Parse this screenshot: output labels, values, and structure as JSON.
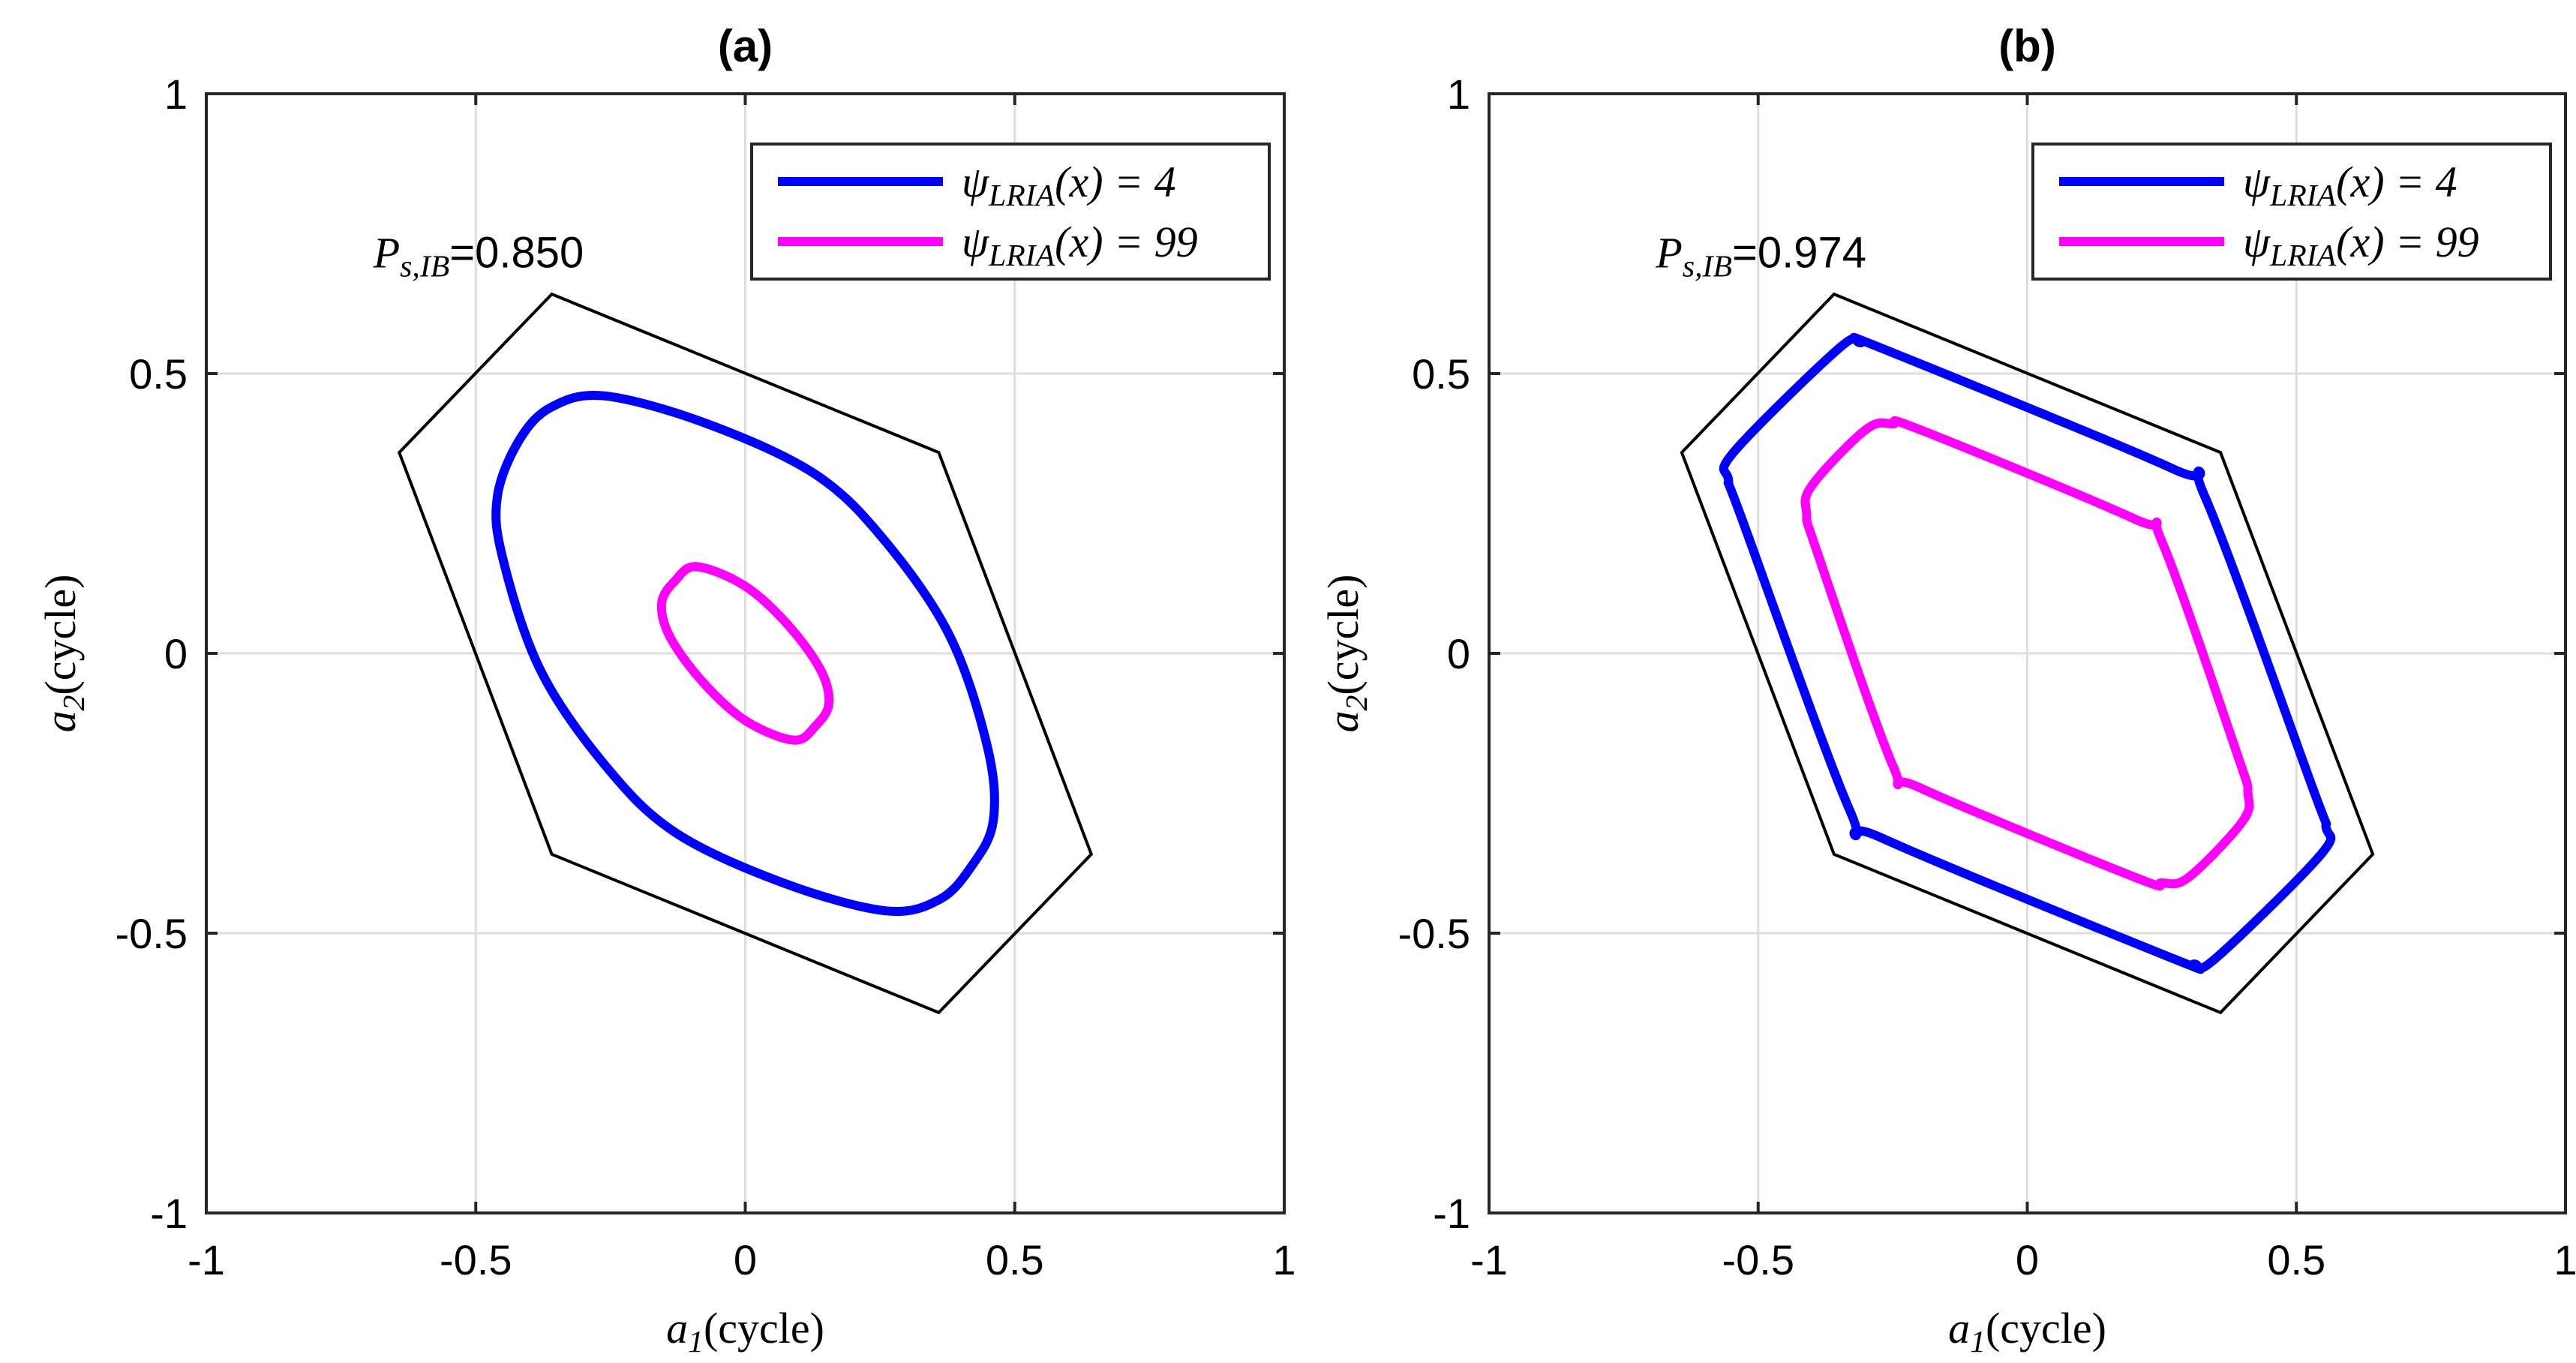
{
  "chart_data": [
    {
      "type": "line",
      "title": "(a)",
      "xlabel_var": "a",
      "xlabel_sub": "1",
      "xlabel_unit": "(cycle)",
      "ylabel_var": "a",
      "ylabel_sub": "2",
      "ylabel_unit": "(cycle)",
      "xlim": [
        -1,
        1
      ],
      "ylim": [
        -1,
        1
      ],
      "xticks": [
        "-1",
        "-0.5",
        "0",
        "0.5",
        "1"
      ],
      "yticks": [
        "1",
        "0.5",
        "0",
        "-0.5",
        "-1"
      ],
      "grid": true,
      "legend_position": "top-right",
      "annotation": {
        "var": "P",
        "sub": "s,IB",
        "value": "=0.850",
        "x": -0.69,
        "y": 0.69
      },
      "hexagon": [
        [
          -0.359,
          0.642
        ],
        [
          0.359,
          0.359
        ],
        [
          0.642,
          -0.359
        ],
        [
          0.359,
          -0.642
        ],
        [
          -0.359,
          -0.359
        ],
        [
          -0.642,
          0.359
        ]
      ],
      "series": [
        {
          "name": "ψLRIA(x) = 4",
          "legend": {
            "psi": "ψ",
            "sub": "LRIA",
            "rest": "(x) = 4"
          },
          "color": "#0000ff",
          "points": [
            [
              -0.26,
              0.46
            ],
            [
              -0.07,
              0.41
            ],
            [
              0.13,
              0.32
            ],
            [
              0.26,
              0.2
            ],
            [
              0.38,
              0.03
            ],
            [
              0.45,
              -0.17
            ],
            [
              0.46,
              -0.3
            ],
            [
              0.42,
              -0.38
            ],
            [
              0.36,
              -0.44
            ],
            [
              0.26,
              -0.46
            ],
            [
              0.07,
              -0.41
            ],
            [
              -0.13,
              -0.32
            ],
            [
              -0.26,
              -0.2
            ],
            [
              -0.38,
              -0.03
            ],
            [
              -0.45,
              0.17
            ],
            [
              -0.46,
              0.28
            ],
            [
              -0.42,
              0.38
            ],
            [
              -0.36,
              0.44
            ]
          ]
        },
        {
          "name": "ψLRIA(x) = 99",
          "legend": {
            "psi": "ψ",
            "sub": "LRIA",
            "rest": "(x) = 99"
          },
          "color": "#ff00ff",
          "points": [
            [
              -0.09,
              0.155
            ],
            [
              0.0,
              0.12
            ],
            [
              0.08,
              0.05
            ],
            [
              0.14,
              -0.03
            ],
            [
              0.155,
              -0.09
            ],
            [
              0.13,
              -0.13
            ],
            [
              0.09,
              -0.155
            ],
            [
              0.0,
              -0.12
            ],
            [
              -0.08,
              -0.05
            ],
            [
              -0.14,
              0.03
            ],
            [
              -0.155,
              0.09
            ],
            [
              -0.13,
              0.13
            ]
          ]
        }
      ]
    },
    {
      "type": "line",
      "title": "(b)",
      "xlabel_var": "a",
      "xlabel_sub": "1",
      "xlabel_unit": "(cycle)",
      "ylabel_var": "a",
      "ylabel_sub": "2",
      "ylabel_unit": "(cycle)",
      "xlim": [
        -1,
        1
      ],
      "ylim": [
        -1,
        1
      ],
      "xticks": [
        "-1",
        "-0.5",
        "0",
        "0.5",
        "1"
      ],
      "yticks": [
        "1",
        "0.5",
        "0",
        "-0.5",
        "-1"
      ],
      "grid": true,
      "legend_position": "top-right",
      "annotation": {
        "var": "P",
        "sub": "s,IB",
        "value": "=0.974",
        "x": -0.69,
        "y": 0.69
      },
      "hexagon": [
        [
          -0.359,
          0.642
        ],
        [
          0.359,
          0.359
        ],
        [
          0.642,
          -0.359
        ],
        [
          0.359,
          -0.642
        ],
        [
          -0.359,
          -0.359
        ],
        [
          -0.642,
          0.359
        ]
      ],
      "series": [
        {
          "name": "ψLRIA(x) = 4",
          "legend": {
            "psi": "ψ",
            "sub": "LRIA",
            "rest": "(x) = 4"
          },
          "color": "#0000ff",
          "points": [
            [
              -0.31,
              0.555
            ],
            [
              -0.27,
              0.545
            ],
            [
              0.27,
              0.33
            ],
            [
              0.33,
              0.28
            ],
            [
              0.53,
              -0.24
            ],
            [
              0.555,
              -0.31
            ],
            [
              0.545,
              -0.36
            ],
            [
              0.35,
              -0.545
            ],
            [
              0.31,
              -0.555
            ],
            [
              0.27,
              -0.545
            ],
            [
              -0.27,
              -0.33
            ],
            [
              -0.33,
              -0.28
            ],
            [
              -0.53,
              0.24
            ],
            [
              -0.555,
              0.31
            ],
            [
              -0.545,
              0.36
            ],
            [
              -0.35,
              0.545
            ]
          ]
        },
        {
          "name": "ψLRIA(x) = 99",
          "legend": {
            "psi": "ψ",
            "sub": "LRIA",
            "rest": "(x) = 99"
          },
          "color": "#ff00ff",
          "points": [
            [
              -0.25,
              0.41
            ],
            [
              -0.2,
              0.4
            ],
            [
              0.2,
              0.24
            ],
            [
              0.25,
              0.2
            ],
            [
              0.39,
              -0.18
            ],
            [
              0.41,
              -0.25
            ],
            [
              0.4,
              -0.3
            ],
            [
              0.3,
              -0.4
            ],
            [
              0.25,
              -0.41
            ],
            [
              0.2,
              -0.4
            ],
            [
              -0.2,
              -0.24
            ],
            [
              -0.25,
              -0.2
            ],
            [
              -0.39,
              0.18
            ],
            [
              -0.41,
              0.25
            ],
            [
              -0.4,
              0.3
            ],
            [
              -0.3,
              0.4
            ]
          ]
        }
      ]
    }
  ]
}
